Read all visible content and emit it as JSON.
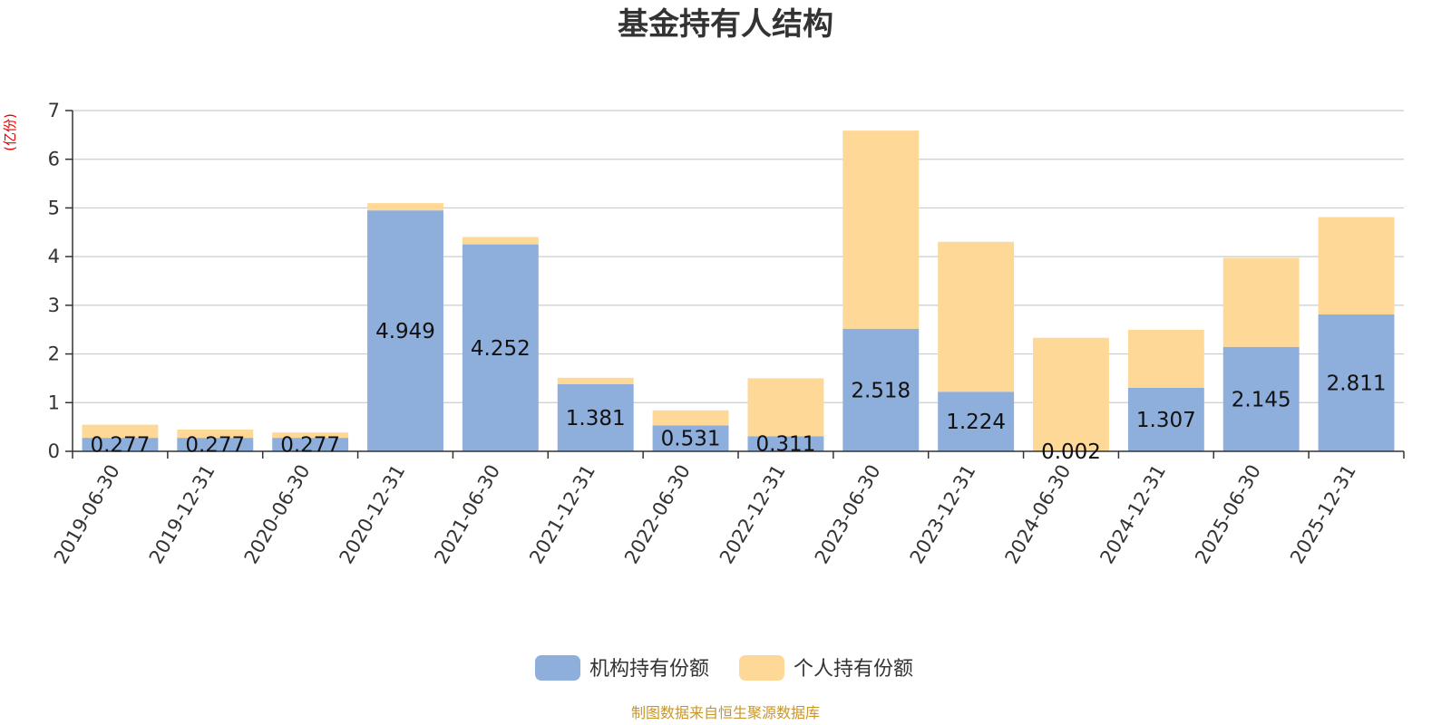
{
  "colors": {
    "institutional": "#8eaedc",
    "individual": "#fed896",
    "grid": "#cccccc",
    "axis": "#333333",
    "title": "#333333",
    "unit": "#e60000",
    "source": "#c9962a"
  },
  "chart_data": {
    "type": "bar",
    "stacked": true,
    "title": "基金持有人结构",
    "ylabel": "(亿份)",
    "ylim": [
      0,
      7
    ],
    "yticks": [
      0,
      1,
      2,
      3,
      4,
      5,
      6,
      7
    ],
    "grid": true,
    "legend_position": "bottom-center",
    "categories": [
      "2019-06-30",
      "2019-12-31",
      "2020-06-30",
      "2020-12-31",
      "2021-06-30",
      "2021-12-31",
      "2022-06-30",
      "2022-12-31",
      "2023-06-30",
      "2023-12-31",
      "2024-06-30",
      "2024-12-31",
      "2025-06-30",
      "2025-12-31"
    ],
    "series": [
      {
        "name": "机构持有份额",
        "values": [
          0.277,
          0.277,
          0.277,
          4.949,
          4.252,
          1.381,
          0.531,
          0.311,
          2.518,
          1.224,
          0.002,
          1.307,
          2.145,
          2.811
        ],
        "labels": [
          "0.277",
          "0.277",
          "0.277",
          "4.949",
          "4.252",
          "1.381",
          "0.531",
          "0.311",
          "2.518",
          "1.224",
          "0.002",
          "1.307",
          "2.145",
          "2.811"
        ]
      },
      {
        "name": "个人持有份额",
        "values": [
          0.27,
          0.17,
          0.11,
          0.15,
          0.15,
          0.13,
          0.31,
          1.19,
          4.07,
          3.08,
          2.33,
          1.19,
          1.83,
          2.0
        ]
      }
    ]
  },
  "footer": {
    "source_text": "制图数据来自恒生聚源数据库"
  }
}
